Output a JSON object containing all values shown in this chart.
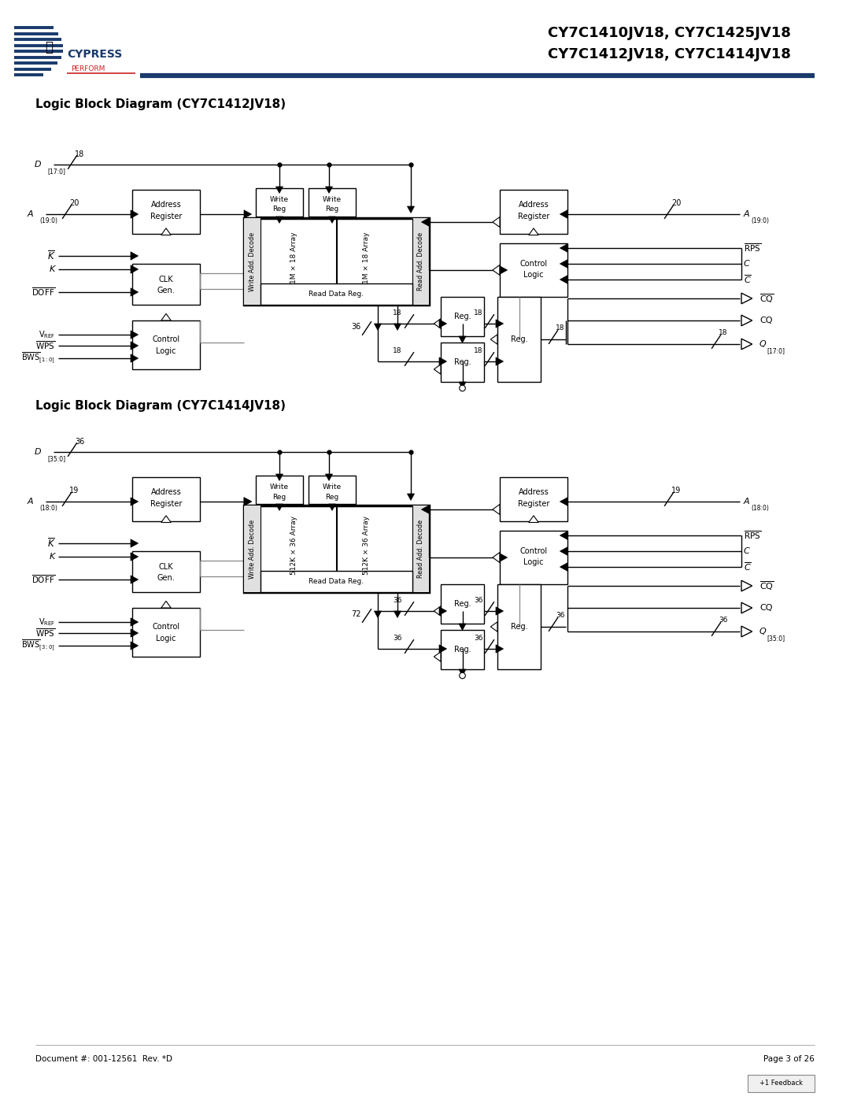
{
  "title_line1": "CY7C1410JV18, CY7C1425JV18",
  "title_line2": "CY7C1412JV18, CY7C1414JV18",
  "diagram1_title": "Logic Block Diagram (CY7C1412JV18)",
  "diagram2_title": "Logic Block Diagram (CY7C1414JV18)",
  "doc_number": "Document #: 001-12561  Rev. *D",
  "page": "Page 3 of 26",
  "bg_color": "#ffffff",
  "box_color": "#000000",
  "line_color": "#000000",
  "header_line_color": "#1a3a6b",
  "text_color": "#000000"
}
